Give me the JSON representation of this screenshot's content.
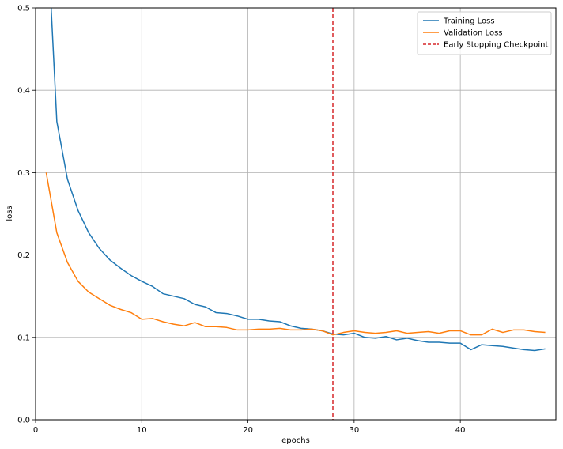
{
  "chart_data": {
    "type": "line",
    "title": "",
    "xlabel": "epochs",
    "ylabel": "loss",
    "xlim": [
      0,
      49
    ],
    "ylim": [
      0,
      0.5
    ],
    "xticks": [
      0,
      10,
      20,
      30,
      40
    ],
    "yticks": [
      0.0,
      0.1,
      0.2,
      0.3,
      0.4,
      0.5
    ],
    "ytick_labels": [
      "0.0",
      "0.1",
      "0.2",
      "0.3",
      "0.4",
      "0.5"
    ],
    "grid": true,
    "legend_position": "upper-right",
    "x": [
      1,
      2,
      3,
      4,
      5,
      6,
      7,
      8,
      9,
      10,
      11,
      12,
      13,
      14,
      15,
      16,
      17,
      18,
      19,
      20,
      21,
      22,
      23,
      24,
      25,
      26,
      27,
      28,
      29,
      30,
      31,
      32,
      33,
      34,
      35,
      36,
      37,
      38,
      39,
      40,
      41,
      42,
      43,
      44,
      45,
      46,
      47,
      48
    ],
    "series": [
      {
        "name": "Training Loss",
        "color": "#1f77b4",
        "style": "solid",
        "values": [
          0.62,
          0.362,
          0.292,
          0.254,
          0.227,
          0.208,
          0.194,
          0.184,
          0.175,
          0.168,
          0.162,
          0.153,
          0.15,
          0.147,
          0.14,
          0.137,
          0.13,
          0.129,
          0.126,
          0.122,
          0.122,
          0.12,
          0.119,
          0.114,
          0.111,
          0.11,
          0.108,
          0.104,
          0.103,
          0.105,
          0.1,
          0.099,
          0.101,
          0.097,
          0.099,
          0.096,
          0.094,
          0.094,
          0.093,
          0.093,
          0.085,
          0.091,
          0.09,
          0.089,
          0.087,
          0.085,
          0.084,
          0.086
        ]
      },
      {
        "name": "Validation Loss",
        "color": "#ff7f0e",
        "style": "solid",
        "values": [
          0.3,
          0.227,
          0.191,
          0.168,
          0.155,
          0.147,
          0.139,
          0.134,
          0.13,
          0.122,
          0.123,
          0.119,
          0.116,
          0.114,
          0.118,
          0.113,
          0.113,
          0.112,
          0.109,
          0.109,
          0.11,
          0.11,
          0.111,
          0.109,
          0.109,
          0.11,
          0.108,
          0.103,
          0.106,
          0.108,
          0.106,
          0.105,
          0.106,
          0.108,
          0.105,
          0.106,
          0.107,
          0.105,
          0.108,
          0.108,
          0.103,
          0.103,
          0.11,
          0.106,
          0.109,
          0.109,
          0.107,
          0.106
        ]
      }
    ],
    "vlines": [
      {
        "name": "Early Stopping Checkpoint",
        "x": 28,
        "color": "#d62728",
        "style": "dashed"
      }
    ]
  }
}
